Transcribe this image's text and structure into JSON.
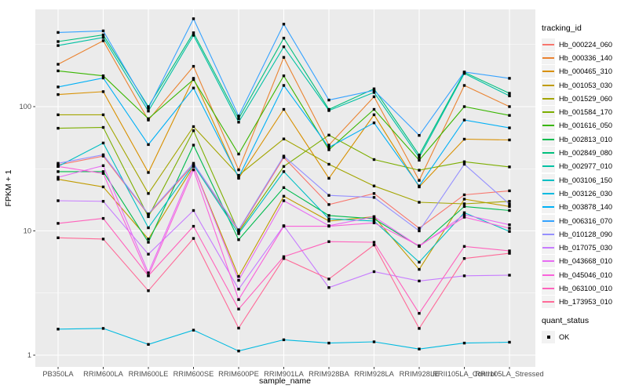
{
  "chart_data": {
    "type": "line",
    "title": "",
    "xlabel": "sample_name",
    "ylabel": "FPKM + 1",
    "y_scale": "log10",
    "ylim": [
      0.8,
      600
    ],
    "y_ticks": [
      1,
      10,
      100
    ],
    "grid": "on",
    "panel_bg": "#EBEBEB",
    "grid_color": "#FFFFFF",
    "point_shape": "filled-square",
    "point_color": "#000000",
    "legend_position": "right",
    "categories": [
      "PB350LA",
      "RRIM600LA",
      "RRIM600LE",
      "RRIM600SE",
      "RRIM600PE",
      "RRIM901LA",
      "RRIM928BA",
      "RRIM928LA",
      "RRIM928LE",
      "RRII105LA_Control",
      "RRII105LA_Stressed"
    ],
    "series": [
      {
        "name": "Hb_000224_060",
        "color": "#F8766D",
        "values": [
          34,
          40,
          13.5,
          34,
          10,
          39,
          16.3,
          20,
          10.5,
          19.5,
          21
        ]
      },
      {
        "name": "Hb_000336_140",
        "color": "#EA8331",
        "values": [
          219,
          339,
          78,
          211,
          31,
          249,
          49,
          120,
          25.5,
          148,
          100
        ]
      },
      {
        "name": "Hb_000465_310",
        "color": "#D89000",
        "values": [
          125,
          132,
          29.5,
          169,
          26.5,
          95,
          26.5,
          86,
          22.6,
          54.7,
          53.9
        ]
      },
      {
        "name": "Hb_001053_030",
        "color": "#C09B00",
        "values": [
          26,
          22.6,
          8.6,
          33,
          4.3,
          19,
          12,
          13,
          4.9,
          18,
          15.7
        ]
      },
      {
        "name": "Hb_001529_060",
        "color": "#A3A500",
        "values": [
          86,
          86,
          20,
          69,
          28,
          55,
          34.4,
          23,
          17,
          16.5,
          17.3
        ]
      },
      {
        "name": "Hb_001584_170",
        "color": "#7CAE00",
        "values": [
          67,
          68,
          13,
          64,
          9.8,
          33,
          59,
          37.5,
          30.8,
          36,
          32.7
        ]
      },
      {
        "name": "Hb_001616_050",
        "color": "#39B600",
        "values": [
          194,
          177,
          80,
          165,
          41.5,
          177,
          45,
          95,
          37,
          100,
          85
        ]
      },
      {
        "name": "Hb_002813_010",
        "color": "#00BB4E",
        "values": [
          30,
          30,
          8.1,
          49,
          8.5,
          22.3,
          13.3,
          12.5,
          7.5,
          15.7,
          14.6
        ]
      },
      {
        "name": "Hb_002849_080",
        "color": "#00BF7D",
        "values": [
          334,
          378,
          100,
          393,
          80,
          356,
          95,
          139,
          40.8,
          189,
          128
        ]
      },
      {
        "name": "Hb_002977_010",
        "color": "#00C1A3",
        "values": [
          310,
          360,
          92,
          375,
          75,
          303,
          93,
          130,
          39,
          185,
          122
        ]
      },
      {
        "name": "Hb_003106_150",
        "color": "#00BFC4",
        "values": [
          33,
          51,
          10.6,
          34,
          9.5,
          30,
          12.5,
          12,
          5.6,
          14,
          9.9
        ]
      },
      {
        "name": "Hb_003126_030",
        "color": "#00BAE0",
        "values": [
          1.62,
          1.64,
          1.22,
          1.59,
          1.08,
          1.33,
          1.25,
          1.28,
          1.12,
          1.25,
          1.27
        ]
      },
      {
        "name": "Hb_003878_140",
        "color": "#00B0F6",
        "values": [
          144,
          170,
          49.5,
          141,
          27,
          148,
          47,
          74,
          23,
          78,
          67.5
        ]
      },
      {
        "name": "Hb_006316_070",
        "color": "#35A2FF",
        "values": [
          395,
          407,
          97,
          510,
          84,
          461,
          113,
          135,
          58.7,
          190,
          169
        ]
      },
      {
        "name": "Hb_010128_090",
        "color": "#9590FF",
        "values": [
          35,
          41,
          13.7,
          35,
          10.2,
          40,
          19.3,
          18.6,
          10,
          34.4,
          16.4
        ]
      },
      {
        "name": "Hb_017075_030",
        "color": "#C77CFF",
        "values": [
          17.5,
          17.3,
          6.5,
          14.6,
          3.4,
          11,
          3.5,
          4.7,
          3.95,
          4.35,
          4.4
        ]
      },
      {
        "name": "Hb_043668_010",
        "color": "#E76BF3",
        "values": [
          27,
          33.5,
          4.6,
          33,
          4.0,
          17.5,
          11,
          13,
          7.5,
          13.5,
          11.2
        ]
      },
      {
        "name": "Hb_045046_010",
        "color": "#FA62DB",
        "values": [
          33,
          29,
          4.35,
          31,
          2.8,
          10.9,
          10.9,
          11.6,
          7.6,
          12.9,
          10.5
        ]
      },
      {
        "name": "Hb_063100_010",
        "color": "#FF62BC",
        "values": [
          11.5,
          12.6,
          4.35,
          10.9,
          2.35,
          6.2,
          8.2,
          8.1,
          2.17,
          7.5,
          6.9
        ]
      },
      {
        "name": "Hb_173953_010",
        "color": "#FF6A98",
        "values": [
          8.8,
          8.6,
          3.3,
          8.7,
          1.65,
          6.0,
          4.1,
          7.7,
          1.64,
          6.0,
          6.6
        ]
      }
    ]
  },
  "legend": {
    "tracking_title": "tracking_id",
    "quant_title": "quant_status",
    "quant_items": [
      {
        "label": "OK",
        "shape": "black-square"
      }
    ]
  }
}
